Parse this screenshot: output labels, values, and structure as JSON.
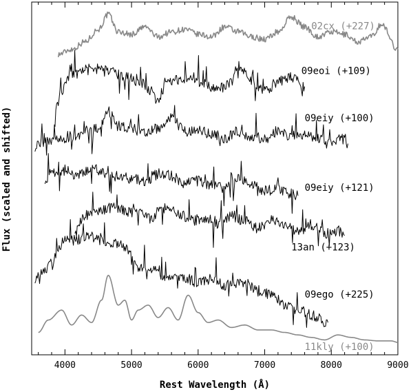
{
  "chart_data": {
    "type": "line",
    "xlabel": "Rest Wavelength (Å)",
    "ylabel": "Flux (scaled and shifted)",
    "xlim": [
      3500,
      9000
    ],
    "x_ticks": [
      "4000",
      "5000",
      "6000",
      "7000",
      "8000",
      "9000"
    ],
    "grid": false,
    "legend": "none",
    "series": [
      {
        "name": "02cx (+227)",
        "color": "#888888",
        "x": [
          3900,
          4100,
          4300,
          4500,
          4650,
          4800,
          5000,
          5200,
          5400,
          5600,
          5800,
          6000,
          6200,
          6400,
          6600,
          6800,
          7000,
          7200,
          7400,
          7600,
          7800,
          8000,
          8200,
          8400,
          8600,
          8750,
          9000
        ],
        "y": [
          5.05,
          5.15,
          5.3,
          5.55,
          5.85,
          5.5,
          5.45,
          5.6,
          5.4,
          5.5,
          5.55,
          5.45,
          5.4,
          5.6,
          5.5,
          5.4,
          5.35,
          5.5,
          5.8,
          5.6,
          5.4,
          5.5,
          5.45,
          5.3,
          5.4,
          5.65,
          5.15
        ]
      },
      {
        "name": "09eoi (+109)",
        "color": "#000000",
        "x": [
          3850,
          3950,
          4100,
          4300,
          4500,
          4700,
          4900,
          5100,
          5300,
          5400,
          5500,
          5700,
          5900,
          6100,
          6300,
          6500,
          6600,
          6800,
          7000,
          7200,
          7400,
          7600
        ],
        "y": [
          3.9,
          4.3,
          4.65,
          4.7,
          4.75,
          4.7,
          4.6,
          4.5,
          4.3,
          4.1,
          4.45,
          4.55,
          4.6,
          4.45,
          4.35,
          4.5,
          4.8,
          4.55,
          4.3,
          4.5,
          4.6,
          4.4
        ]
      },
      {
        "name": "09eiy (+100)",
        "color": "#000000",
        "x": [
          3550,
          3700,
          3900,
          4100,
          4300,
          4500,
          4650,
          4800,
          5000,
          5200,
          5400,
          5600,
          5800,
          6000,
          6200,
          6400,
          6600,
          6800,
          7000,
          7200,
          7400,
          7600,
          7800,
          8000,
          8200,
          8250
        ],
        "y": [
          3.2,
          3.3,
          3.35,
          3.4,
          3.45,
          3.55,
          3.9,
          3.6,
          3.55,
          3.45,
          3.55,
          3.75,
          3.5,
          3.5,
          3.45,
          3.35,
          3.5,
          3.4,
          3.35,
          3.5,
          3.4,
          3.45,
          3.35,
          3.3,
          3.35,
          3.25
        ]
      },
      {
        "name": "09eiy (+121)",
        "color": "#000000",
        "x": [
          3700,
          3800,
          4000,
          4200,
          4400,
          4600,
          4800,
          5000,
          5200,
          5400,
          5600,
          5800,
          6000,
          6200,
          6400,
          6600,
          6800,
          7000,
          7200,
          7400,
          7500
        ],
        "y": [
          2.55,
          2.65,
          2.7,
          2.6,
          2.75,
          2.65,
          2.6,
          2.55,
          2.5,
          2.65,
          2.6,
          2.45,
          2.5,
          2.4,
          2.35,
          2.55,
          2.4,
          2.3,
          2.35,
          2.25,
          2.2
        ]
      },
      {
        "name": "13an (+123)",
        "color": "#000000",
        "x": [
          4150,
          4300,
          4500,
          4700,
          4900,
          5100,
          5300,
          5500,
          5700,
          5900,
          6100,
          6300,
          6500,
          6700,
          6900,
          7100,
          7300,
          7500,
          7700,
          7900,
          8100,
          8200
        ],
        "y": [
          1.55,
          1.8,
          1.9,
          1.95,
          1.9,
          1.85,
          1.75,
          1.95,
          1.85,
          1.7,
          1.75,
          1.65,
          1.8,
          1.7,
          1.55,
          1.7,
          1.65,
          1.5,
          1.6,
          1.45,
          1.5,
          1.4
        ]
      },
      {
        "name": "09ego (+225)",
        "color": "#000000",
        "x": [
          3550,
          3700,
          3800,
          3900,
          4000,
          4150,
          4300,
          4500,
          4700,
          4900,
          5000,
          5100,
          5300,
          5500,
          5800,
          6000,
          6200,
          6400,
          6700,
          6900,
          7100,
          7300,
          7500,
          7700,
          7950
        ],
        "y": [
          0.55,
          0.7,
          0.85,
          1.1,
          1.35,
          1.3,
          1.4,
          1.35,
          1.25,
          1.2,
          1.05,
          0.75,
          0.7,
          0.6,
          0.55,
          0.45,
          0.5,
          0.4,
          0.45,
          0.3,
          0.2,
          0.0,
          -0.1,
          -0.2,
          -0.35
        ]
      },
      {
        "name": "11kly (+100)",
        "color": "#888888",
        "x": [
          3600,
          3750,
          3950,
          4100,
          4250,
          4400,
          4550,
          4650,
          4800,
          4900,
          5000,
          5100,
          5250,
          5400,
          5550,
          5700,
          5850,
          6000,
          6150,
          6300,
          6500,
          6700,
          6900,
          7100,
          7300,
          7500,
          7700,
          7900,
          8100,
          8300,
          8500,
          8700,
          8900,
          9000
        ],
        "y": [
          -0.55,
          -0.3,
          -0.1,
          -0.4,
          -0.2,
          -0.35,
          0.1,
          0.6,
          0.0,
          0.1,
          -0.3,
          -0.1,
          0.0,
          -0.25,
          -0.05,
          -0.3,
          0.2,
          -0.15,
          -0.35,
          -0.3,
          -0.45,
          -0.4,
          -0.5,
          -0.5,
          -0.55,
          -0.6,
          -0.65,
          -0.7,
          -0.6,
          -0.65,
          -0.7,
          -0.72,
          -0.72,
          -0.75
        ]
      }
    ],
    "labels": [
      {
        "text": "02cx (+227)",
        "x": 7700,
        "y": 5.55,
        "color": "#888888"
      },
      {
        "text": "09eoi (+109)",
        "x": 7550,
        "y": 4.65,
        "color": "#000000"
      },
      {
        "text": "09eiy (+100)",
        "x": 7600,
        "y": 3.7,
        "color": "#000000"
      },
      {
        "text": "09eiy (+121)",
        "x": 7600,
        "y": 2.3,
        "color": "#000000"
      },
      {
        "text": "13an (+123)",
        "x": 7400,
        "y": 1.1,
        "color": "#000000"
      },
      {
        "text": "09ego (+225)",
        "x": 7600,
        "y": 0.15,
        "color": "#000000"
      },
      {
        "text": "11kly (+100)",
        "x": 7600,
        "y": -0.9,
        "color": "#888888"
      }
    ]
  }
}
